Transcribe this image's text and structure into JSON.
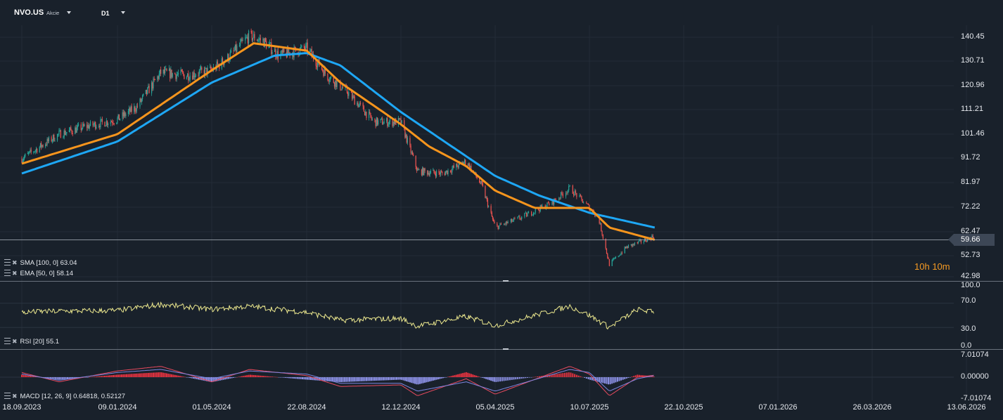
{
  "header": {
    "symbol": "NVO.US",
    "instrument_type": "Akcie",
    "timeframe": "D1"
  },
  "price_panel": {
    "indicators": [
      {
        "name": "SMA",
        "params": "[100,  0]",
        "value": "63.04",
        "color": "#1ea7f5"
      },
      {
        "name": "EMA",
        "params": "[50,  0]",
        "value": "58.14",
        "color": "#f7951d"
      }
    ],
    "current_price": "59.66",
    "countdown_hours": "10",
    "countdown_minutes": "10",
    "y_ticks": [
      "140.45",
      "130.71",
      "120.96",
      "111.21",
      "101.46",
      "91.72",
      "81.97",
      "72.22",
      "62.47",
      "52.73",
      "42.98"
    ]
  },
  "rsi_panel": {
    "label": "RSI",
    "params": "[20]",
    "value": "55.1",
    "color": "#ece88e",
    "y_ticks": [
      "100.0",
      "70.0",
      "30.0",
      "0.0"
    ]
  },
  "macd_panel": {
    "label": "MACD",
    "params": "[12,  26,  9]",
    "value_macd": "0.64818,",
    "value_signal": "0.52127",
    "macd_color": "#e84a5f",
    "signal_color": "#7d86e0",
    "hist_pos_color": "#e0323f",
    "hist_neg_color": "#8c91e6",
    "y_ticks": [
      "7.01074",
      "0.00000",
      "-7.01074"
    ]
  },
  "x_axis": {
    "labels": [
      "18.09.2023",
      "09.01.2024",
      "01.05.2024",
      "22.08.2024",
      "12.12.2024",
      "05.04.2025",
      "10.07.2025",
      "22.10.2025",
      "07.01.2026",
      "26.03.2026",
      "13.06.2026"
    ]
  },
  "chart_data": [
    {
      "type": "candlestick",
      "title": "NVO.US",
      "ylim": [
        42.98,
        140.45
      ],
      "candle_up_color": "#26a69a",
      "candle_down_color": "#ef5350",
      "series": [
        {
          "name": "SMA [100, 0]",
          "style": "line",
          "color": "#1ea7f5",
          "points": [
            [
              "18.09.2023",
              85
            ],
            [
              "09.01.2024",
              98
            ],
            [
              "01.05.2024",
              122
            ],
            [
              "15.07.2024",
              133
            ],
            [
              "22.08.2024",
              134
            ],
            [
              "01.10.2024",
              129
            ],
            [
              "12.12.2024",
              110
            ],
            [
              "01.03.2025",
              92
            ],
            [
              "05.04.2025",
              84
            ],
            [
              "20.05.2025",
              76
            ],
            [
              "10.07.2025",
              69
            ],
            [
              "15.08.2025",
              66
            ],
            [
              "20.09.2025",
              63
            ]
          ]
        },
        {
          "name": "EMA [50, 0]",
          "style": "line",
          "color": "#f7951d",
          "points": [
            [
              "18.09.2023",
              89
            ],
            [
              "09.01.2024",
              101
            ],
            [
              "01.05.2024",
              127
            ],
            [
              "20.06.2024",
              138
            ],
            [
              "22.08.2024",
              135
            ],
            [
              "01.10.2024",
              122
            ],
            [
              "12.12.2024",
              105
            ],
            [
              "15.01.2025",
              96
            ],
            [
              "01.03.2025",
              88
            ],
            [
              "05.04.2025",
              78
            ],
            [
              "15.05.2025",
              71
            ],
            [
              "10.07.2025",
              71
            ],
            [
              "01.08.2025",
              63
            ],
            [
              "20.09.2025",
              58
            ]
          ]
        }
      ],
      "last_price": 59.66,
      "closes": [
        [
          "18.09.2023",
          91
        ],
        [
          "10.10.2023",
          96
        ],
        [
          "01.11.2023",
          101
        ],
        [
          "01.12.2023",
          104
        ],
        [
          "09.01.2024",
          107
        ],
        [
          "01.02.2024",
          112
        ],
        [
          "01.03.2024",
          126
        ],
        [
          "01.04.2024",
          125
        ],
        [
          "01.05.2024",
          127
        ],
        [
          "20.05.2024",
          132
        ],
        [
          "15.06.2024",
          141
        ],
        [
          "01.07.2024",
          139
        ],
        [
          "20.07.2024",
          133
        ],
        [
          "22.08.2024",
          136
        ],
        [
          "15.09.2024",
          125
        ],
        [
          "10.10.2024",
          118
        ],
        [
          "10.11.2024",
          106
        ],
        [
          "12.12.2024",
          106
        ],
        [
          "01.01.2025",
          86
        ],
        [
          "01.02.2025",
          85
        ],
        [
          "01.03.2025",
          90
        ],
        [
          "20.03.2025",
          80
        ],
        [
          "05.04.2025",
          63
        ],
        [
          "01.05.2025",
          67
        ],
        [
          "01.06.2025",
          73
        ],
        [
          "20.06.2025",
          79
        ],
        [
          "10.07.2025",
          71
        ],
        [
          "20.07.2025",
          67
        ],
        [
          "01.08.2025",
          48
        ],
        [
          "20.08.2025",
          55
        ],
        [
          "10.09.2025",
          58
        ],
        [
          "20.09.2025",
          59.66
        ]
      ]
    },
    {
      "type": "line",
      "title": "RSI [20]",
      "ylim": [
        0,
        100
      ],
      "series": [
        {
          "name": "RSI [20]",
          "color": "#ece88e",
          "points": [
            [
              "18.09.2023",
              55
            ],
            [
              "01.11.2023",
              57
            ],
            [
              "09.01.2024",
              58
            ],
            [
              "01.03.2024",
              68
            ],
            [
              "01.05.2024",
              60
            ],
            [
              "15.06.2024",
              65
            ],
            [
              "22.08.2024",
              55
            ],
            [
              "01.10.2024",
              42
            ],
            [
              "12.12.2024",
              45
            ],
            [
              "01.01.2025",
              32
            ],
            [
              "01.03.2025",
              48
            ],
            [
              "05.04.2025",
              33
            ],
            [
              "20.06.2025",
              65
            ],
            [
              "10.07.2025",
              50
            ],
            [
              "01.08.2025",
              30
            ],
            [
              "01.09.2025",
              60
            ],
            [
              "20.09.2025",
              55.1
            ]
          ]
        }
      ]
    },
    {
      "type": "line",
      "title": "MACD [12, 26, 9]",
      "ylim": [
        -7.01074,
        7.01074
      ],
      "series": [
        {
          "name": "MACD",
          "color": "#e84a5f",
          "points": [
            [
              "18.09.2023",
              1.5
            ],
            [
              "01.11.2023",
              -1.5
            ],
            [
              "09.01.2024",
              2
            ],
            [
              "01.03.2024",
              3.5
            ],
            [
              "01.05.2024",
              -1.5
            ],
            [
              "15.06.2024",
              2.5
            ],
            [
              "22.08.2024",
              0.5
            ],
            [
              "01.10.2024",
              -3
            ],
            [
              "12.12.2024",
              -2.5
            ],
            [
              "01.01.2025",
              -6
            ],
            [
              "01.03.2025",
              -0.5
            ],
            [
              "05.04.2025",
              -5.5
            ],
            [
              "20.06.2025",
              3.5
            ],
            [
              "10.07.2025",
              1
            ],
            [
              "01.08.2025",
              -6
            ],
            [
              "01.09.2025",
              0
            ],
            [
              "20.09.2025",
              0.64818
            ]
          ]
        },
        {
          "name": "Signal",
          "color": "#7d86e0",
          "points": [
            [
              "18.09.2023",
              1
            ],
            [
              "01.11.2023",
              -1
            ],
            [
              "09.01.2024",
              1.5
            ],
            [
              "01.03.2024",
              2.5
            ],
            [
              "01.05.2024",
              -0.5
            ],
            [
              "15.06.2024",
              2
            ],
            [
              "22.08.2024",
              1
            ],
            [
              "01.10.2024",
              -2
            ],
            [
              "12.12.2024",
              -2
            ],
            [
              "01.01.2025",
              -4.5
            ],
            [
              "01.03.2025",
              -1.5
            ],
            [
              "05.04.2025",
              -4.5
            ],
            [
              "20.06.2025",
              2.5
            ],
            [
              "10.07.2025",
              1.5
            ],
            [
              "01.08.2025",
              -4.5
            ],
            [
              "01.09.2025",
              -0.5
            ],
            [
              "20.09.2025",
              0.52127
            ]
          ]
        }
      ]
    }
  ]
}
